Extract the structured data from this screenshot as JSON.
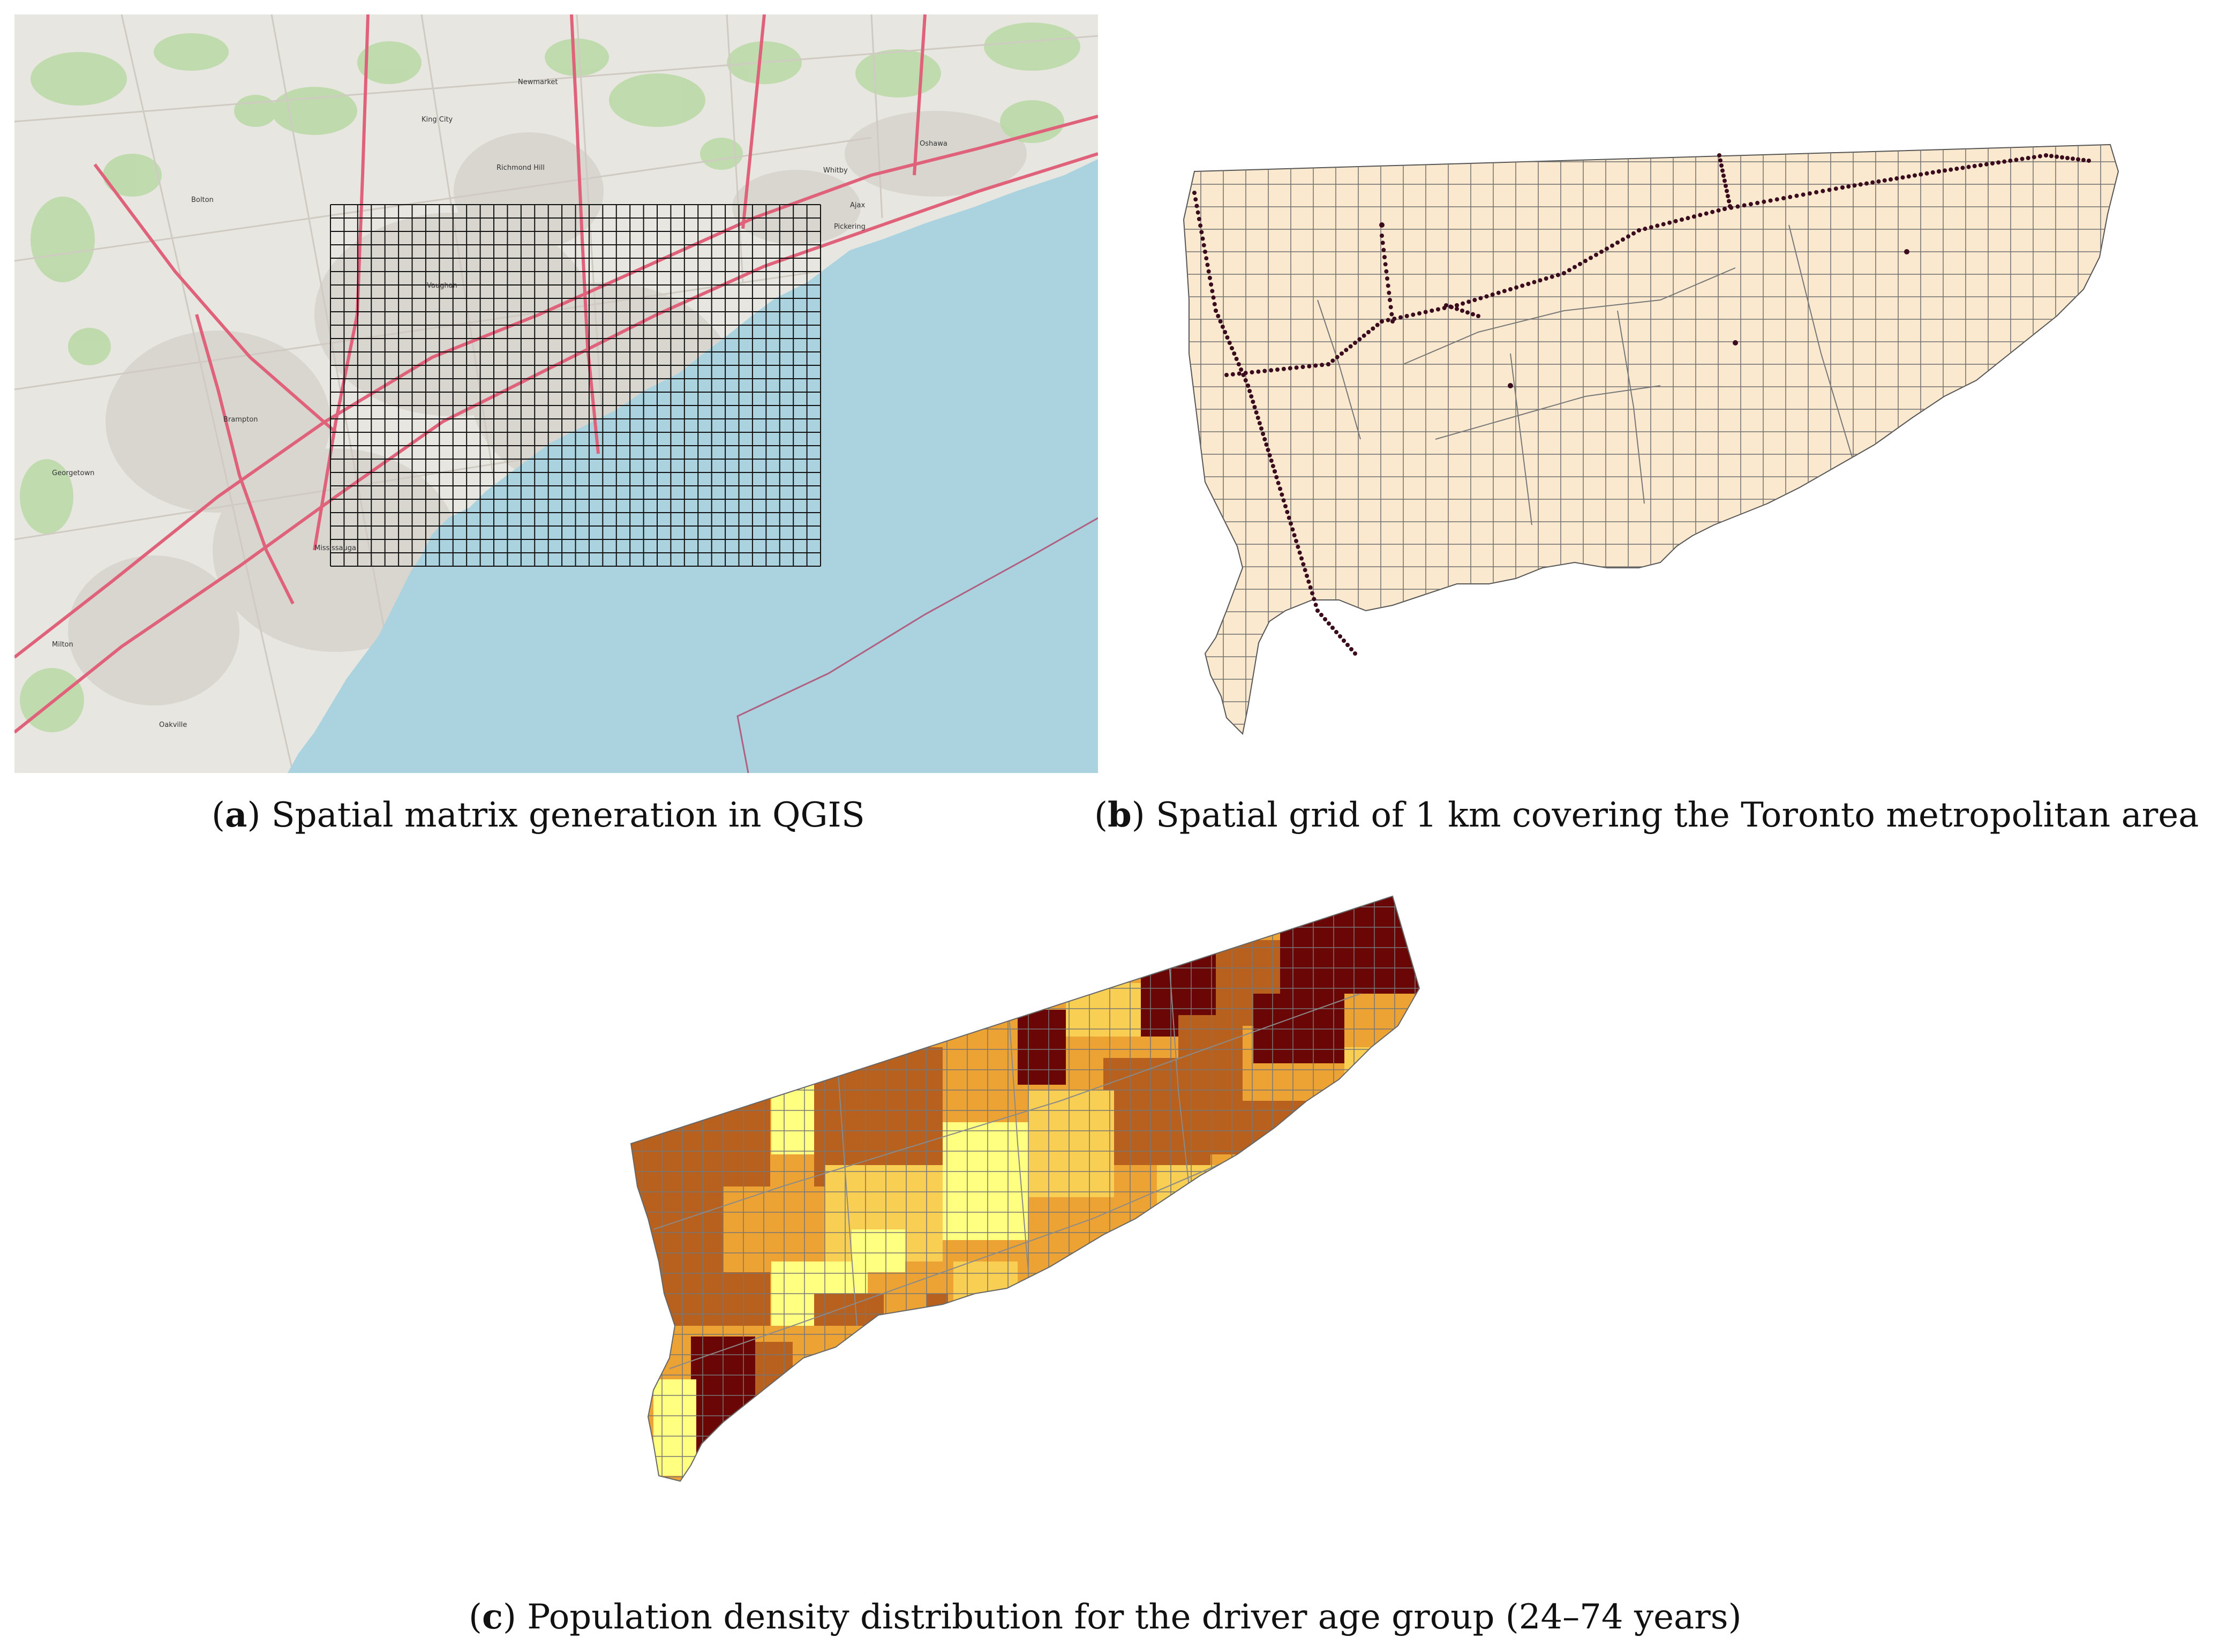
{
  "panels": [
    {
      "id": "a",
      "letter": "a",
      "caption": "Spatial matrix generation in QGIS",
      "place_labels": [
        "Newmarket",
        "King City",
        "Richmond Hill",
        "Oshawa",
        "Whitby",
        "Ajax",
        "Pickering",
        "Brampton",
        "Mississauga",
        "Oakville",
        "Georgetown",
        "Milton",
        "Bolton",
        "Vaughan"
      ]
    },
    {
      "id": "b",
      "letter": "b",
      "caption": "Spatial grid of 1 km covering the Toronto metropolitan area"
    },
    {
      "id": "c",
      "letter": "c",
      "caption": "Population density distribution for the driver age group (24–74 years)"
    }
  ],
  "colors": {
    "water": "#aad3df",
    "land": "#e8e6e0",
    "urban": "#dcd8d2",
    "green": "#b9d9a4",
    "highway": "#e8788a",
    "grid_line": "#111111",
    "toronto_fill": "#fae9cf",
    "toronto_grid": "#6e6e6e",
    "points": "#3a0c1e",
    "density_classes": [
      "#ffff80",
      "#f8cf52",
      "#eda334",
      "#b8611f",
      "#6b0606"
    ]
  }
}
